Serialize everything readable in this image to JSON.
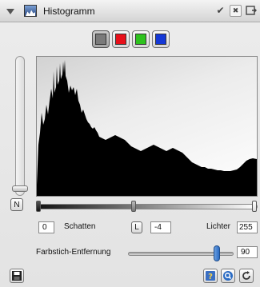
{
  "panel": {
    "title": "Histogramm",
    "collapse_icon": "disclosure-triangle-icon",
    "histogram_icon": "histogram-icon",
    "actions": {
      "check_label": "✔",
      "close_label": "✖",
      "dock_icon": "dock-icon"
    }
  },
  "channels": [
    {
      "name": "Alle",
      "color": "#7a7a7a",
      "active": true
    },
    {
      "name": "Rot",
      "color": "#e8101a",
      "active": false
    },
    {
      "name": "Grün",
      "color": "#2ec21e",
      "active": false
    },
    {
      "name": "Blau",
      "color": "#1438d6",
      "active": false
    }
  ],
  "neutral_button_label": "N",
  "levels": {
    "shadows_value": "0",
    "shadows_label": "Schatten",
    "l_button_label": "L",
    "midtone_value": "-4",
    "highlights_label": "Lichter",
    "highlights_value": "255"
  },
  "color_cast": {
    "label": "Farbstich-Entfernung",
    "value": "90",
    "fraction": 0.9
  },
  "footer": {
    "save_icon": "save-icon",
    "help_icon": "help-icon",
    "preview_icon": "zoom-preview-icon",
    "reset_icon": "reset-icon"
  },
  "colors": {
    "histogram_fill": "#000000",
    "accent_blue": "#2a6bc4"
  }
}
